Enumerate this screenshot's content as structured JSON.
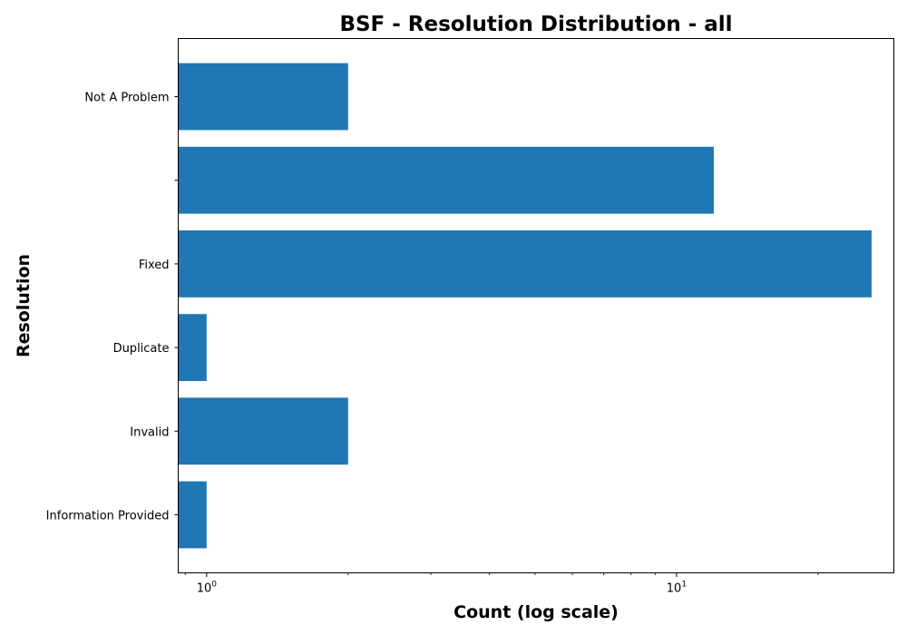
{
  "chart_data": {
    "type": "bar",
    "orientation": "horizontal",
    "title": "BSF - Resolution Distribution - all",
    "xlabel": "Count (log scale)",
    "ylabel": "Resolution",
    "x_scale": "log",
    "xlim": [
      0.87,
      29
    ],
    "categories": [
      "Information Provided",
      "Invalid",
      "Duplicate",
      "Fixed",
      "",
      "Not A Problem"
    ],
    "values": [
      1,
      2,
      1,
      26,
      12,
      2
    ],
    "x_ticks": [
      {
        "value": 1,
        "base": "10",
        "exponent": "0"
      },
      {
        "value": 10,
        "base": "10",
        "exponent": "1"
      }
    ],
    "bar_color": "#1f77b4",
    "grid": false,
    "legend": "none"
  }
}
